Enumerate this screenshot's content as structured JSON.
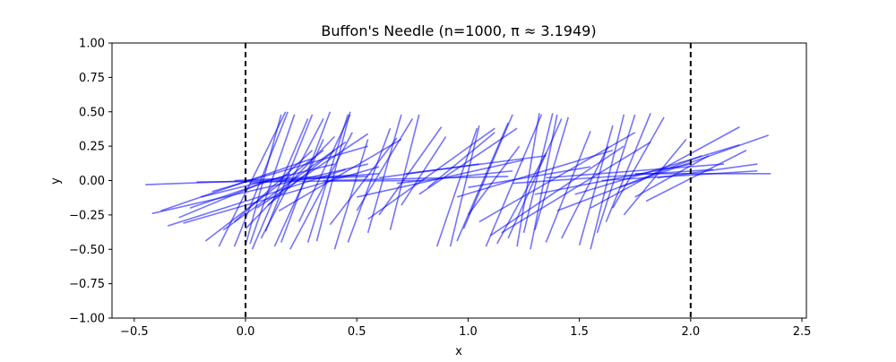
{
  "chart_data": {
    "type": "line",
    "title": "Buffon's Needle (n=1000, π ≈ 3.1949)",
    "xlabel": "x",
    "ylabel": "y",
    "xlim": [
      -0.6,
      2.52
    ],
    "ylim": [
      -1.0,
      1.0
    ],
    "xticks": [
      -0.5,
      0.0,
      0.5,
      1.0,
      1.5,
      2.0,
      2.5
    ],
    "xtick_labels": [
      "−0.5",
      "0.0",
      "0.5",
      "1.0",
      "1.5",
      "2.0",
      "2.5"
    ],
    "yticks": [
      -1.0,
      -0.75,
      -0.5,
      -0.25,
      0.0,
      0.25,
      0.5,
      0.75,
      1.0
    ],
    "ytick_labels": [
      "−1.00",
      "−0.75",
      "−0.50",
      "−0.25",
      "0.00",
      "0.25",
      "0.50",
      "0.75",
      "1.00"
    ],
    "grid": false,
    "reference_lines": {
      "x": [
        0.0,
        2.0
      ],
      "color": "#000000",
      "style": "dashed"
    },
    "needle_color": "#0000ff",
    "needle_alpha": 0.55,
    "series": [
      {
        "values": [
          [
            [
              -0.45,
              -0.03
            ],
            [
              0.55,
              0.03
            ]
          ],
          [
            [
              -0.42,
              -0.24
            ],
            [
              0.55,
              0.12
            ]
          ],
          [
            [
              -0.38,
              -0.22
            ],
            [
              0.3,
              0.16
            ]
          ],
          [
            [
              -0.35,
              -0.33
            ],
            [
              0.45,
              0.08
            ]
          ],
          [
            [
              -0.3,
              -0.27
            ],
            [
              0.1,
              0.0
            ]
          ],
          [
            [
              -0.28,
              -0.31
            ],
            [
              0.6,
              0.1
            ]
          ],
          [
            [
              -0.25,
              -0.2
            ],
            [
              0.2,
              0.05
            ]
          ],
          [
            [
              -0.2,
              -0.12
            ],
            [
              0.4,
              0.12
            ]
          ],
          [
            [
              -0.18,
              -0.44
            ],
            [
              0.35,
              0.22
            ]
          ],
          [
            [
              -0.15,
              -0.08
            ],
            [
              0.55,
              0.25
            ]
          ],
          [
            [
              -0.1,
              -0.36
            ],
            [
              0.45,
              0.28
            ]
          ],
          [
            [
              -0.05,
              -0.3
            ],
            [
              0.3,
              0.22
            ]
          ],
          [
            [
              0.0,
              -0.35
            ],
            [
              0.4,
              0.32
            ]
          ],
          [
            [
              -0.22,
              -0.01
            ],
            [
              0.8,
              0.0
            ]
          ],
          [
            [
              -0.05,
              0.0
            ],
            [
              0.5,
              0.04
            ]
          ],
          [
            [
              0.05,
              -0.2
            ],
            [
              0.55,
              0.34
            ]
          ],
          [
            [
              0.1,
              -0.18
            ],
            [
              0.4,
              0.22
            ]
          ],
          [
            [
              0.15,
              -0.22
            ],
            [
              0.7,
              0.3
            ]
          ],
          [
            [
              0.02,
              -0.02
            ],
            [
              0.6,
              0.05
            ]
          ],
          [
            [
              -0.12,
              -0.48
            ],
            [
              0.18,
              0.5
            ]
          ],
          [
            [
              -0.05,
              -0.48
            ],
            [
              0.19,
              0.5
            ]
          ],
          [
            [
              0.0,
              -0.47
            ],
            [
              0.16,
              0.48
            ]
          ],
          [
            [
              0.02,
              -0.46
            ],
            [
              0.22,
              0.48
            ]
          ],
          [
            [
              0.03,
              -0.5
            ],
            [
              0.28,
              0.45
            ]
          ],
          [
            [
              0.07,
              -0.42
            ],
            [
              0.35,
              0.45
            ]
          ],
          [
            [
              0.09,
              -0.37
            ],
            [
              0.3,
              0.48
            ]
          ],
          [
            [
              0.13,
              -0.48
            ],
            [
              0.35,
              0.3
            ]
          ],
          [
            [
              0.16,
              -0.45
            ],
            [
              0.38,
              0.5
            ]
          ],
          [
            [
              0.2,
              -0.5
            ],
            [
              0.48,
              0.35
            ]
          ],
          [
            [
              0.24,
              -0.3
            ],
            [
              0.47,
              0.48
            ]
          ],
          [
            [
              0.28,
              -0.45
            ],
            [
              0.46,
              0.48
            ]
          ],
          [
            [
              0.32,
              -0.44
            ],
            [
              0.47,
              0.5
            ]
          ],
          [
            [
              0.38,
              -0.32
            ],
            [
              0.68,
              0.31
            ]
          ],
          [
            [
              0.4,
              -0.5
            ],
            [
              0.55,
              0.3
            ]
          ],
          [
            [
              0.46,
              -0.45
            ],
            [
              0.65,
              0.38
            ]
          ],
          [
            [
              0.5,
              -0.22
            ],
            [
              0.75,
              0.45
            ]
          ],
          [
            [
              0.55,
              -0.38
            ],
            [
              0.7,
              0.48
            ]
          ],
          [
            [
              0.6,
              -0.25
            ],
            [
              0.88,
              0.39
            ]
          ],
          [
            [
              0.65,
              -0.36
            ],
            [
              0.78,
              0.48
            ]
          ],
          [
            [
              0.7,
              -0.18
            ],
            [
              0.9,
              0.32
            ]
          ],
          [
            [
              0.35,
              0.0
            ],
            [
              1.18,
              0.03
            ]
          ],
          [
            [
              0.5,
              -0.12
            ],
            [
              1.25,
              0.15
            ]
          ],
          [
            [
              0.55,
              -0.28
            ],
            [
              1.12,
              0.38
            ]
          ],
          [
            [
              0.6,
              0.02
            ],
            [
              1.05,
              0.12
            ]
          ],
          [
            [
              0.72,
              0.05
            ],
            [
              1.35,
              0.18
            ]
          ],
          [
            [
              0.78,
              -0.1
            ],
            [
              1.22,
              0.38
            ]
          ],
          [
            [
              0.82,
              -0.05
            ],
            [
              1.12,
              0.35
            ]
          ],
          [
            [
              0.68,
              -0.02
            ],
            [
              1.2,
              0.07
            ]
          ],
          [
            [
              0.86,
              -0.48
            ],
            [
              1.04,
              0.38
            ]
          ],
          [
            [
              0.92,
              -0.48
            ],
            [
              1.05,
              0.4
            ]
          ],
          [
            [
              0.95,
              -0.44
            ],
            [
              1.18,
              0.42
            ]
          ],
          [
            [
              0.98,
              -0.35
            ],
            [
              1.2,
              0.48
            ]
          ],
          [
            [
              1.0,
              -0.25
            ],
            [
              1.23,
              0.25
            ]
          ],
          [
            [
              1.08,
              -0.48
            ],
            [
              1.33,
              0.48
            ]
          ],
          [
            [
              1.13,
              -0.46
            ],
            [
              1.35,
              0.2
            ]
          ],
          [
            [
              1.18,
              -0.42
            ],
            [
              1.42,
              0.45
            ]
          ],
          [
            [
              1.22,
              -0.48
            ],
            [
              1.32,
              0.49
            ]
          ],
          [
            [
              1.25,
              -0.38
            ],
            [
              1.38,
              0.49
            ]
          ],
          [
            [
              1.28,
              -0.5
            ],
            [
              1.4,
              0.48
            ]
          ],
          [
            [
              1.3,
              -0.36
            ],
            [
              1.45,
              0.46
            ]
          ],
          [
            [
              1.35,
              -0.45
            ],
            [
              1.55,
              0.36
            ]
          ],
          [
            [
              1.42,
              -0.42
            ],
            [
              1.63,
              0.25
            ]
          ],
          [
            [
              1.5,
              -0.47
            ],
            [
              1.65,
              0.4
            ]
          ],
          [
            [
              1.55,
              -0.5
            ],
            [
              1.7,
              0.48
            ]
          ],
          [
            [
              1.58,
              -0.38
            ],
            [
              1.75,
              0.48
            ]
          ],
          [
            [
              1.62,
              -0.3
            ],
            [
              1.82,
              0.49
            ]
          ],
          [
            [
              1.65,
              -0.2
            ],
            [
              1.88,
              0.46
            ]
          ],
          [
            [
              0.95,
              -0.12
            ],
            [
              1.65,
              0.22
            ]
          ],
          [
            [
              1.0,
              -0.05
            ],
            [
              1.55,
              0.1
            ]
          ],
          [
            [
              1.05,
              -0.3
            ],
            [
              1.75,
              0.35
            ]
          ],
          [
            [
              1.1,
              -0.4
            ],
            [
              1.7,
              0.25
            ]
          ],
          [
            [
              1.15,
              -0.38
            ],
            [
              1.82,
              0.28
            ]
          ],
          [
            [
              1.2,
              -0.02
            ],
            [
              2.1,
              0.08
            ]
          ],
          [
            [
              1.3,
              -0.1
            ],
            [
              2.0,
              0.12
            ]
          ],
          [
            [
              1.35,
              0.02
            ],
            [
              2.15,
              0.12
            ]
          ],
          [
            [
              1.4,
              -0.22
            ],
            [
              2.05,
              0.18
            ]
          ],
          [
            [
              1.48,
              -0.1
            ],
            [
              2.22,
              0.26
            ]
          ],
          [
            [
              1.55,
              -0.2
            ],
            [
              2.22,
              0.39
            ]
          ],
          [
            [
              1.6,
              0.0
            ],
            [
              2.3,
              0.07
            ]
          ],
          [
            [
              1.68,
              -0.05
            ],
            [
              2.35,
              0.33
            ]
          ],
          [
            [
              1.75,
              0.05
            ],
            [
              2.36,
              0.05
            ]
          ],
          [
            [
              1.8,
              -0.15
            ],
            [
              2.25,
              0.22
            ]
          ],
          [
            [
              1.85,
              0.02
            ],
            [
              2.3,
              0.12
            ]
          ],
          [
            [
              1.7,
              -0.25
            ],
            [
              1.98,
              0.3
            ]
          ],
          [
            [
              1.75,
              -0.12
            ],
            [
              2.08,
              0.18
            ]
          ]
        ]
      }
    ]
  }
}
